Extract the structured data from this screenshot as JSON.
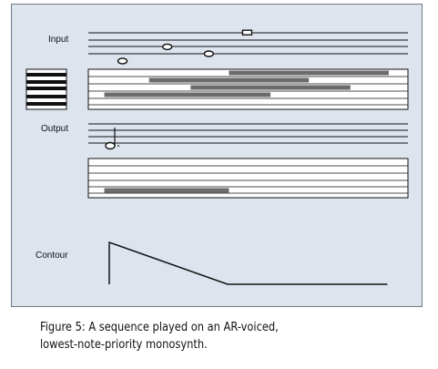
{
  "labels": {
    "input": "Input",
    "output": "Output",
    "contour": "Contour"
  },
  "caption": {
    "line1": "Figure 5: A sequence played on an AR-voiced,",
    "line2": "lowest-note-priority monosynth."
  },
  "colors": {
    "panel": "#dde4ee",
    "note_bar": "#6b6b6b",
    "staff_line": "#111111",
    "key_black": "#111111"
  },
  "input_notes": [
    {
      "name": "note-1",
      "time": 0.05,
      "staff_pos": -1,
      "shape": "oval"
    },
    {
      "name": "note-2",
      "time": 0.19,
      "staff_pos": 1,
      "shape": "oval"
    },
    {
      "name": "note-3",
      "time": 0.32,
      "staff_pos": 0,
      "shape": "oval"
    },
    {
      "name": "note-4",
      "time": 0.44,
      "staff_pos": 3,
      "shape": "rect"
    }
  ],
  "input_roll": [
    {
      "row": 0,
      "start": 0.44,
      "end": 0.94
    },
    {
      "row": 1,
      "start": 0.19,
      "end": 0.69
    },
    {
      "row": 2,
      "start": 0.32,
      "end": 0.82
    },
    {
      "row": 3,
      "start": 0.05,
      "end": 0.57
    }
  ],
  "output_roll": [
    {
      "row": 3,
      "start": 0.05,
      "end": 0.44
    }
  ],
  "contour": {
    "points": [
      [
        0.0,
        0.0
      ],
      [
        0.0,
        1.0
      ],
      [
        0.37,
        0.0
      ],
      [
        0.87,
        0.0
      ]
    ]
  }
}
